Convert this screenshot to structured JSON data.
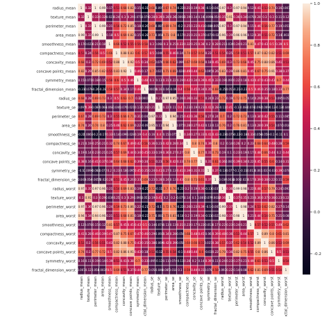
{
  "chart_data": {
    "type": "heatmap",
    "title": "",
    "xlabel": "",
    "ylabel": "",
    "labels": [
      "radius_mean",
      "texture_mean",
      "perimeter_mean",
      "area_mean",
      "smoothness_mean",
      "compactness_mean",
      "concavity_mean",
      "concave points_mean",
      "symmetry_mean",
      "fractal_dimension_mean",
      "radius_se",
      "texture_se",
      "perimeter_se",
      "area_se",
      "smoothness_se",
      "compactness_se",
      "concavity_se",
      "concave points_se",
      "symmetry_se",
      "fractal_dimension_se",
      "radius_worst",
      "texture_worst",
      "perimeter_worst",
      "area_worst",
      "smoothness_worst",
      "compactness_worst",
      "concavity_worst",
      "concave points_worst",
      "symmetry_worst",
      "fractal_dimension_worst"
    ],
    "matrix": [
      [
        1,
        0.32,
        1,
        0.99,
        0.17,
        0.51,
        0.68,
        0.82,
        0.15,
        -0.31,
        0.68,
        -0.097,
        0.67,
        0.74,
        -0.22,
        0.21,
        0.19,
        0.38,
        -0.1,
        -0.043,
        0.97,
        0.3,
        0.97,
        0.94,
        0.12,
        0.41,
        0.53,
        0.74,
        0.16,
        0.007
      ],
      [
        0.32,
        1,
        0.33,
        0.32,
        -0.023,
        0.24,
        0.3,
        0.29,
        0.071,
        -0.076,
        0.28,
        0.39,
        0.28,
        0.26,
        0.0066,
        0.19,
        0.14,
        0.16,
        0.0091,
        0.054,
        0.35,
        0.91,
        0.36,
        0.34,
        0.078,
        0.28,
        0.3,
        0.3,
        0.11,
        0.12
      ],
      [
        1,
        0.33,
        1,
        0.99,
        0.21,
        0.56,
        0.72,
        0.85,
        0.18,
        -0.26,
        0.69,
        -0.087,
        0.69,
        0.74,
        -0.2,
        0.25,
        0.23,
        0.41,
        -0.082,
        -0.0055,
        0.97,
        0.3,
        0.97,
        0.94,
        0.15,
        0.46,
        0.56,
        0.77,
        0.19,
        0.051
      ],
      [
        0.99,
        0.32,
        0.99,
        1,
        0.18,
        0.5,
        0.69,
        0.82,
        0.15,
        -0.28,
        0.73,
        -0.066,
        0.73,
        0.8,
        -0.17,
        0.21,
        0.21,
        0.37,
        -0.072,
        -0.02,
        0.96,
        0.29,
        0.96,
        0.96,
        0.12,
        0.39,
        0.51,
        0.72,
        0.14,
        0.0037
      ],
      [
        0.17,
        -0.023,
        0.21,
        0.18,
        1,
        0.66,
        0.52,
        0.55,
        0.56,
        0.58,
        0.3,
        0.068,
        0.3,
        0.25,
        0.33,
        0.32,
        0.25,
        0.38,
        0.2,
        0.28,
        0.21,
        0.036,
        0.24,
        0.21,
        0.81,
        0.47,
        0.43,
        0.5,
        0.39,
        0.5
      ],
      [
        0.51,
        0.24,
        0.56,
        0.5,
        0.66,
        1,
        0.88,
        0.83,
        0.6,
        0.57,
        0.5,
        0.046,
        0.55,
        0.46,
        0.14,
        0.74,
        0.57,
        0.64,
        0.23,
        0.51,
        0.54,
        0.25,
        0.59,
        0.51,
        0.57,
        0.87,
        0.82,
        0.82,
        0.51,
        0.69
      ],
      [
        0.68,
        0.3,
        0.72,
        0.69,
        0.52,
        0.88,
        1,
        0.92,
        0.5,
        0.34,
        0.63,
        0.076,
        0.66,
        0.62,
        0.099,
        0.67,
        0.69,
        0.68,
        0.18,
        0.45,
        0.69,
        0.3,
        0.73,
        0.68,
        0.45,
        0.75,
        0.88,
        0.86,
        0.41,
        0.51
      ],
      [
        0.82,
        0.29,
        0.85,
        0.82,
        0.55,
        0.83,
        0.92,
        1,
        0.46,
        0.17,
        0.7,
        0.021,
        0.71,
        0.69,
        0.028,
        0.49,
        0.44,
        0.62,
        0.095,
        0.26,
        0.83,
        0.29,
        0.86,
        0.81,
        0.45,
        0.67,
        0.75,
        0.91,
        0.38,
        0.37
      ],
      [
        0.15,
        0.071,
        0.18,
        0.15,
        0.56,
        0.6,
        0.5,
        0.46,
        1,
        0.48,
        0.3,
        0.13,
        0.31,
        0.22,
        0.19,
        0.42,
        0.34,
        0.39,
        0.45,
        0.33,
        0.19,
        0.091,
        0.22,
        0.18,
        0.43,
        0.47,
        0.43,
        0.43,
        0.7,
        0.44
      ],
      [
        -0.31,
        -0.076,
        -0.26,
        -0.28,
        0.58,
        0.57,
        0.34,
        0.17,
        0.48,
        1,
        0.00011,
        0.16,
        0.04,
        -0.09,
        0.4,
        0.56,
        0.45,
        0.34,
        0.35,
        0.69,
        -0.25,
        -0.051,
        -0.21,
        -0.23,
        0.5,
        0.46,
        0.35,
        0.18,
        0.33,
        0.77
      ],
      [
        0.68,
        0.28,
        0.69,
        0.73,
        0.3,
        0.5,
        0.63,
        0.7,
        0.3,
        0.00011,
        1,
        0.21,
        0.97,
        0.95,
        0.16,
        0.36,
        0.33,
        0.51,
        0.24,
        0.23,
        0.72,
        0.19,
        0.72,
        0.75,
        0.14,
        0.29,
        0.38,
        0.53,
        0.095,
        0.05
      ],
      [
        -0.097,
        0.39,
        -0.087,
        -0.066,
        0.068,
        0.046,
        0.076,
        0.021,
        0.13,
        0.16,
        0.21,
        1,
        0.22,
        0.11,
        0.4,
        0.23,
        0.19,
        0.23,
        0.41,
        0.28,
        -0.11,
        0.41,
        -0.1,
        -0.083,
        -0.074,
        -0.092,
        -0.069,
        -0.12,
        -0.13,
        -0.046
      ],
      [
        0.67,
        0.28,
        0.69,
        0.73,
        0.3,
        0.55,
        0.66,
        0.71,
        0.31,
        0.04,
        0.97,
        0.22,
        1,
        0.94,
        0.15,
        0.42,
        0.36,
        0.56,
        0.27,
        0.24,
        0.7,
        0.2,
        0.72,
        0.73,
        0.13,
        0.34,
        0.42,
        0.55,
        0.11,
        0.085
      ],
      [
        0.74,
        0.26,
        0.74,
        0.8,
        0.25,
        0.46,
        0.62,
        0.69,
        0.22,
        -0.09,
        0.95,
        0.11,
        0.94,
        1,
        0.075,
        0.28,
        0.27,
        0.42,
        0.13,
        0.13,
        0.76,
        0.2,
        0.76,
        0.81,
        0.13,
        0.28,
        0.39,
        0.54,
        0.074,
        0.018
      ],
      [
        -0.22,
        0.0066,
        -0.2,
        -0.17,
        0.33,
        0.14,
        0.099,
        0.028,
        0.19,
        0.4,
        0.16,
        0.4,
        0.15,
        0.075,
        1,
        0.34,
        0.27,
        0.33,
        0.41,
        0.43,
        -0.23,
        -0.075,
        -0.22,
        -0.18,
        0.31,
        -0.056,
        -0.058,
        -0.1,
        -0.11,
        0.1
      ],
      [
        0.21,
        0.19,
        0.25,
        0.21,
        0.32,
        0.74,
        0.67,
        0.49,
        0.42,
        0.56,
        0.36,
        0.23,
        0.42,
        0.28,
        0.34,
        1,
        0.8,
        0.74,
        0.39,
        0.8,
        0.2,
        0.14,
        0.26,
        0.2,
        0.23,
        0.68,
        0.64,
        0.48,
        0.28,
        0.59
      ],
      [
        0.19,
        0.14,
        0.23,
        0.21,
        0.25,
        0.57,
        0.69,
        0.44,
        0.34,
        0.45,
        0.33,
        0.19,
        0.36,
        0.27,
        0.27,
        0.8,
        1,
        0.77,
        0.31,
        0.73,
        0.19,
        0.1,
        0.23,
        0.19,
        0.17,
        0.48,
        0.66,
        0.44,
        0.2,
        0.44
      ],
      [
        0.38,
        0.16,
        0.41,
        0.37,
        0.38,
        0.64,
        0.68,
        0.62,
        0.39,
        0.34,
        0.51,
        0.23,
        0.56,
        0.42,
        0.33,
        0.74,
        0.77,
        1,
        0.31,
        0.61,
        0.36,
        0.087,
        0.39,
        0.34,
        0.22,
        0.45,
        0.55,
        0.6,
        0.14,
        0.31
      ],
      [
        -0.1,
        0.0091,
        -0.082,
        -0.072,
        0.2,
        0.23,
        0.18,
        0.095,
        0.45,
        0.35,
        0.24,
        0.41,
        0.27,
        0.13,
        0.41,
        0.39,
        0.31,
        0.31,
        1,
        0.37,
        -0.13,
        -0.077,
        -0.1,
        -0.11,
        -0.013,
        0.06,
        0.037,
        -0.03,
        0.39,
        0.078
      ],
      [
        -0.043,
        0.054,
        -0.0055,
        -0.02,
        0.28,
        0.51,
        0.45,
        0.26,
        0.33,
        0.69,
        0.23,
        0.28,
        0.24,
        0.13,
        0.43,
        0.8,
        0.73,
        0.61,
        0.37,
        1,
        -0.037,
        -0.0032,
        -0.001,
        -0.023,
        0.17,
        0.39,
        0.38,
        0.22,
        0.11,
        0.59
      ],
      [
        0.97,
        0.35,
        0.97,
        0.96,
        0.21,
        0.54,
        0.69,
        0.83,
        0.19,
        -0.25,
        0.72,
        -0.11,
        0.7,
        0.76,
        -0.23,
        0.2,
        0.19,
        0.36,
        -0.13,
        -0.037,
        1,
        0.36,
        0.99,
        0.98,
        0.22,
        0.48,
        0.57,
        0.79,
        0.24,
        0.093
      ],
      [
        0.3,
        0.91,
        0.3,
        0.29,
        0.036,
        0.25,
        0.3,
        0.29,
        0.091,
        -0.051,
        0.19,
        0.41,
        0.2,
        0.2,
        -0.075,
        0.14,
        0.1,
        0.087,
        -0.077,
        -0.0032,
        0.36,
        1,
        0.37,
        0.35,
        0.23,
        0.36,
        0.37,
        0.36,
        0.23,
        0.22
      ],
      [
        0.97,
        0.36,
        0.97,
        0.96,
        0.24,
        0.59,
        0.73,
        0.86,
        0.22,
        -0.21,
        0.72,
        -0.1,
        0.72,
        0.76,
        -0.22,
        0.26,
        0.23,
        0.39,
        -0.1,
        -0.001,
        0.99,
        0.37,
        1,
        0.98,
        0.24,
        0.53,
        0.62,
        0.82,
        0.27,
        0.14
      ],
      [
        0.94,
        0.34,
        0.94,
        0.96,
        0.21,
        0.51,
        0.68,
        0.81,
        0.18,
        -0.23,
        0.75,
        -0.083,
        0.73,
        0.81,
        -0.18,
        0.2,
        0.19,
        0.34,
        -0.11,
        -0.023,
        0.98,
        0.35,
        0.98,
        1,
        0.21,
        0.44,
        0.54,
        0.75,
        0.21,
        0.08
      ],
      [
        0.12,
        0.078,
        0.15,
        0.12,
        0.81,
        0.57,
        0.45,
        0.45,
        0.43,
        0.5,
        0.14,
        -0.074,
        0.13,
        0.13,
        0.31,
        0.23,
        0.17,
        0.22,
        -0.013,
        0.17,
        0.22,
        0.23,
        0.24,
        0.21,
        1,
        0.57,
        0.52,
        0.55,
        0.49,
        0.62
      ],
      [
        0.41,
        0.28,
        0.46,
        0.39,
        0.47,
        0.87,
        0.75,
        0.67,
        0.47,
        0.46,
        0.29,
        -0.092,
        0.34,
        0.28,
        -0.056,
        0.68,
        0.48,
        0.45,
        0.06,
        0.39,
        0.48,
        0.36,
        0.53,
        0.44,
        0.57,
        1,
        0.89,
        0.8,
        0.61,
        0.81
      ],
      [
        0.53,
        0.3,
        0.56,
        0.51,
        0.43,
        0.82,
        0.88,
        0.75,
        0.43,
        0.35,
        0.38,
        -0.069,
        0.42,
        0.39,
        -0.058,
        0.64,
        0.66,
        0.55,
        0.037,
        0.38,
        0.57,
        0.37,
        0.62,
        0.54,
        0.52,
        0.89,
        1,
        0.86,
        0.53,
        0.69
      ],
      [
        0.74,
        0.3,
        0.77,
        0.72,
        0.5,
        0.82,
        0.86,
        0.91,
        0.43,
        0.18,
        0.53,
        -0.12,
        0.55,
        0.54,
        -0.1,
        0.48,
        0.44,
        0.6,
        -0.03,
        0.22,
        0.79,
        0.36,
        0.82,
        0.75,
        0.55,
        0.8,
        0.86,
        1,
        0.5,
        0.51
      ],
      [
        0.16,
        0.11,
        0.19,
        0.14,
        0.39,
        0.51,
        0.41,
        0.38,
        0.7,
        0.33,
        0.095,
        -0.13,
        0.11,
        0.074,
        -0.11,
        0.28,
        0.2,
        0.14,
        0.39,
        0.11,
        0.24,
        0.23,
        0.27,
        0.21,
        0.49,
        0.61,
        0.53,
        0.5,
        1,
        0.54
      ],
      [
        0.007,
        0.12,
        0.051,
        0.0037,
        0.5,
        0.69,
        0.51,
        0.37,
        0.44,
        0.77,
        0.05,
        -0.046,
        0.085,
        0.018,
        0.1,
        0.59,
        0.44,
        0.31,
        0.078,
        0.59,
        0.093,
        0.22,
        0.14,
        0.08,
        0.62,
        0.81,
        0.69,
        0.51,
        0.54,
        1
      ]
    ],
    "colorbar": {
      "colormap": "rocket",
      "range": [
        -0.3,
        1.0
      ],
      "ticks": [
        "1.0",
        "0.8",
        "0.6",
        "0.4",
        "0.2",
        "0.0",
        "-0.2"
      ],
      "tick_values": [
        1.0,
        0.8,
        0.6,
        0.4,
        0.2,
        0.0,
        -0.2
      ]
    },
    "grid": true,
    "cell_border_color": "#ffffff",
    "annotated": true
  }
}
